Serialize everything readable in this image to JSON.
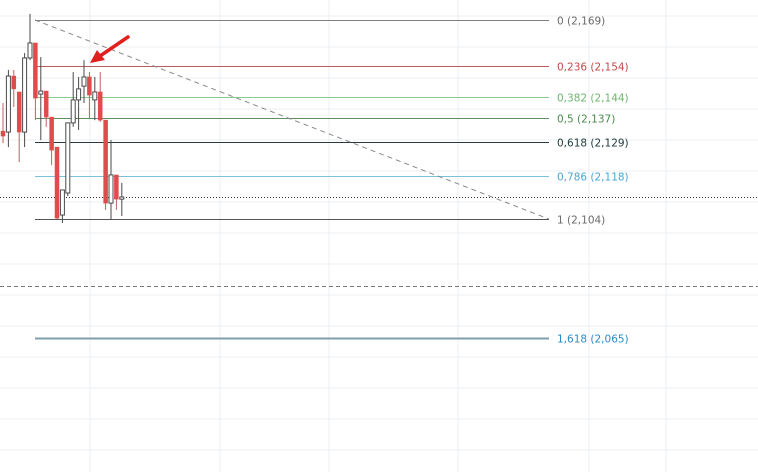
{
  "chart_data": {
    "type": "candlestick",
    "ylim": [
      2.0305,
      2.1756
    ],
    "grid": true,
    "colors": {
      "up": "#ffffff",
      "up_border": "#4a4a4a",
      "down": "#e04b4b",
      "wick_down": "#c06060",
      "wick_up": "#4a4a4a"
    },
    "candles": [
      {
        "o": 2.1327,
        "h": 2.1419,
        "l": 2.1288,
        "c": 2.1311
      },
      {
        "o": 2.1324,
        "h": 2.1527,
        "l": 2.1275,
        "c": 2.1507
      },
      {
        "o": 2.1507,
        "h": 2.1527,
        "l": 2.1406,
        "c": 2.1465
      },
      {
        "o": 2.1455,
        "h": 2.1455,
        "l": 2.1226,
        "c": 2.1324
      },
      {
        "o": 2.1324,
        "h": 2.1582,
        "l": 2.1275,
        "c": 2.1566
      },
      {
        "o": 2.1566,
        "h": 2.171,
        "l": 2.1559,
        "c": 2.1615
      },
      {
        "o": 2.1615,
        "h": 2.1615,
        "l": 2.1363,
        "c": 2.1435
      },
      {
        "o": 2.1448,
        "h": 2.1569,
        "l": 2.1298,
        "c": 2.1458
      },
      {
        "o": 2.1458,
        "h": 2.1458,
        "l": 2.1341,
        "c": 2.1373
      },
      {
        "o": 2.1373,
        "h": 2.1373,
        "l": 2.1216,
        "c": 2.1265
      },
      {
        "o": 2.1275,
        "h": 2.1275,
        "l": 2.104,
        "c": 2.1043
      },
      {
        "o": 2.1053,
        "h": 2.1135,
        "l": 2.1027,
        "c": 2.1135
      },
      {
        "o": 2.1125,
        "h": 2.1354,
        "l": 2.1115,
        "c": 2.1354
      },
      {
        "o": 2.1354,
        "h": 2.152,
        "l": 2.1341,
        "c": 2.1429
      },
      {
        "o": 2.1429,
        "h": 2.1504,
        "l": 2.1331,
        "c": 2.1465
      },
      {
        "o": 2.1474,
        "h": 2.1559,
        "l": 2.1419,
        "c": 2.1504
      },
      {
        "o": 2.1504,
        "h": 2.152,
        "l": 2.137,
        "c": 2.1445
      },
      {
        "o": 2.1429,
        "h": 2.1504,
        "l": 2.1363,
        "c": 2.1455
      },
      {
        "o": 2.1455,
        "h": 2.152,
        "l": 2.1357,
        "c": 2.1363
      },
      {
        "o": 2.1363,
        "h": 2.1363,
        "l": 2.107,
        "c": 2.1092
      },
      {
        "o": 2.1092,
        "h": 2.1298,
        "l": 2.1037,
        "c": 2.1184
      },
      {
        "o": 2.1184,
        "h": 2.1184,
        "l": 2.107,
        "c": 2.1105
      },
      {
        "o": 2.1105,
        "h": 2.1158,
        "l": 2.105,
        "c": 2.1112
      }
    ],
    "fibonacci": {
      "levels": [
        {
          "ratio": "0",
          "price": 2.169,
          "label": "0 (2,169)",
          "line_color": "#7f7f7f",
          "text_color": "#6b6b6b"
        },
        {
          "ratio": "0.236",
          "price": 2.154,
          "label": "0,236 (2,154)",
          "line_color": "#b85c5c",
          "text_color": "#c24a4a"
        },
        {
          "ratio": "0.382",
          "price": 2.144,
          "label": "0,382 (2,144)",
          "line_color": "#8cc98c",
          "text_color": "#6fb56f"
        },
        {
          "ratio": "0.5",
          "price": 2.137,
          "label": "0,5 (2,137)",
          "line_color": "#5f8f5f",
          "text_color": "#4b8a4b"
        },
        {
          "ratio": "0.618",
          "price": 2.129,
          "label": "0,618 (2,129)",
          "line_color": "#2a3a3a",
          "text_color": "#1f3a3a"
        },
        {
          "ratio": "0.786",
          "price": 2.118,
          "label": "0,786 (2,118)",
          "line_color": "#7cc0dc",
          "text_color": "#4aa6d6"
        },
        {
          "ratio": "1",
          "price": 2.104,
          "label": "1 (2,104)",
          "line_color": "#555555",
          "text_color": "#6b6b6b"
        },
        {
          "ratio": "1.618",
          "price": 2.065,
          "label": "1,618 (2,065)",
          "line_color": "#7e9fae",
          "text_color": "#2a8cc7"
        }
      ],
      "trendline": {
        "from_price": 2.169,
        "to_price": 2.104,
        "style": "dashed",
        "color": "#8a8a8a"
      }
    },
    "current_price_line": {
      "price": 2.1112,
      "style": "dotted",
      "color": "#333333"
    },
    "dashed_level": {
      "price": 2.0821,
      "style": "dashed",
      "color": "#777777"
    },
    "annotation": {
      "type": "arrow",
      "color": "#e01f1f",
      "points_to": "local high"
    }
  }
}
